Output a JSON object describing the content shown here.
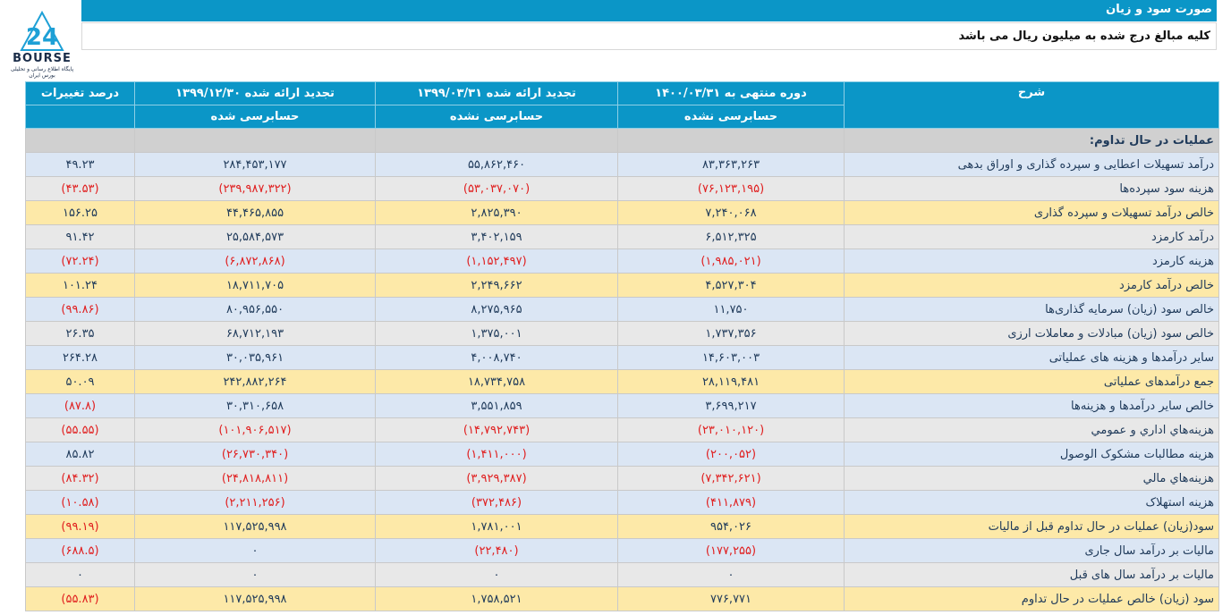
{
  "logo": {
    "text": "BOURSE",
    "subtext": "پایگاه اطلاع رسانی و تحلیلی بورس ایران"
  },
  "header": {
    "title": "صورت سود و زیان",
    "note": "کلیه مبالغ درج شده به میلیون ریال می باشد"
  },
  "columns": {
    "desc": "شرح",
    "col1": "دوره منتهی به ۱۴۰۰/۰۳/۳۱",
    "col1_status": "حسابرسی نشده",
    "col2": "تجدید ارائه شده ۱۳۹۹/۰۳/۳۱",
    "col2_status": "حسابرسی نشده",
    "col3": "تجدید ارائه شده ۱۳۹۹/۱۲/۳۰",
    "col3_status": "حسابرسی شده",
    "change": "درصد تغییرات"
  },
  "section_title": "عملیات در حال تداوم:",
  "rows": [
    {
      "desc": "درآمد تسهیلات اعطایی و سپرده گذاری و اوراق بدهی",
      "v1": "۸۳,۳۶۳,۲۶۳",
      "v2": "۵۵,۸۶۲,۴۶۰",
      "v3": "۲۸۴,۴۵۳,۱۷۷",
      "change": "۴۹.۲۳",
      "style": "blue",
      "neg": [
        false,
        false,
        false,
        false
      ]
    },
    {
      "desc": "هزینه سود سپرده‌ها",
      "v1": "(۷۶,۱۲۳,۱۹۵)",
      "v2": "(۵۳,۰۳۷,۰۷۰)",
      "v3": "(۲۳۹,۹۸۷,۳۲۲)",
      "change": "(۴۳.۵۳)",
      "style": "gray",
      "neg": [
        true,
        true,
        true,
        true
      ]
    },
    {
      "desc": "خالص درآمد تسهیلات و سپرده گذاری",
      "v1": "۷,۲۴۰,۰۶۸",
      "v2": "۲,۸۲۵,۳۹۰",
      "v3": "۴۴,۴۶۵,۸۵۵",
      "change": "۱۵۶.۲۵",
      "style": "yellow",
      "neg": [
        false,
        false,
        false,
        false
      ]
    },
    {
      "desc": "درآمد کارمزد",
      "v1": "۶,۵۱۲,۳۲۵",
      "v2": "۳,۴۰۲,۱۵۹",
      "v3": "۲۵,۵۸۴,۵۷۳",
      "change": "۹۱.۴۲",
      "style": "gray",
      "neg": [
        false,
        false,
        false,
        false
      ]
    },
    {
      "desc": "هزینه کارمزد",
      "v1": "(۱,۹۸۵,۰۲۱)",
      "v2": "(۱,۱۵۲,۴۹۷)",
      "v3": "(۶,۸۷۲,۸۶۸)",
      "change": "(۷۲.۲۴)",
      "style": "blue",
      "neg": [
        true,
        true,
        true,
        true
      ]
    },
    {
      "desc": "خالص درآمد کارمزد",
      "v1": "۴,۵۲۷,۳۰۴",
      "v2": "۲,۲۴۹,۶۶۲",
      "v3": "۱۸,۷۱۱,۷۰۵",
      "change": "۱۰۱.۲۴",
      "style": "yellow",
      "neg": [
        false,
        false,
        false,
        false
      ]
    },
    {
      "desc": "خالص سود (زیان) سرمایه گذاری‌ها",
      "v1": "۱۱,۷۵۰",
      "v2": "۸,۲۷۵,۹۶۵",
      "v3": "۸۰,۹۵۶,۵۵۰",
      "change": "(۹۹.۸۶)",
      "style": "blue",
      "neg": [
        false,
        false,
        false,
        true
      ]
    },
    {
      "desc": "خالص سود (زیان) مبادلات و معاملات ارزی",
      "v1": "۱,۷۳۷,۳۵۶",
      "v2": "۱,۳۷۵,۰۰۱",
      "v3": "۶۸,۷۱۲,۱۹۳",
      "change": "۲۶.۳۵",
      "style": "gray",
      "neg": [
        false,
        false,
        false,
        false
      ]
    },
    {
      "desc": "سایر درآمدها و هزینه های عملیاتی",
      "v1": "۱۴,۶۰۳,۰۰۳",
      "v2": "۴,۰۰۸,۷۴۰",
      "v3": "۳۰,۰۳۵,۹۶۱",
      "change": "۲۶۴.۲۸",
      "style": "blue",
      "neg": [
        false,
        false,
        false,
        false
      ]
    },
    {
      "desc": "جمع درآمدهای عملیاتی",
      "v1": "۲۸,۱۱۹,۴۸۱",
      "v2": "۱۸,۷۳۴,۷۵۸",
      "v3": "۲۴۲,۸۸۲,۲۶۴",
      "change": "۵۰.۰۹",
      "style": "yellow",
      "neg": [
        false,
        false,
        false,
        false
      ]
    },
    {
      "desc": "خالص سایر درآمدها و هزینه‌ها",
      "v1": "۳,۶۹۹,۲۱۷",
      "v2": "۳,۵۵۱,۸۵۹",
      "v3": "۳۰,۳۱۰,۶۵۸",
      "change": "(۸۷.۸)",
      "style": "blue",
      "neg": [
        false,
        false,
        false,
        true
      ]
    },
    {
      "desc": "هزینه‌هاي اداري و عمومي",
      "v1": "(۲۳,۰۱۰,۱۲۰)",
      "v2": "(۱۴,۷۹۲,۷۴۳)",
      "v3": "(۱۰۱,۹۰۶,۵۱۷)",
      "change": "(۵۵.۵۵)",
      "style": "gray",
      "neg": [
        true,
        true,
        true,
        true
      ]
    },
    {
      "desc": "هزینه مطالبات مشکوک الوصول",
      "v1": "(۲۰۰,۰۵۲)",
      "v2": "(۱,۴۱۱,۰۰۰)",
      "v3": "(۲۶,۷۳۰,۳۴۰)",
      "change": "۸۵.۸۲",
      "style": "blue",
      "neg": [
        true,
        true,
        true,
        false
      ]
    },
    {
      "desc": "هزینه‌هاي مالي",
      "v1": "(۷,۳۴۲,۶۲۱)",
      "v2": "(۳,۹۲۹,۳۸۷)",
      "v3": "(۲۴,۸۱۸,۸۱۱)",
      "change": "(۸۴.۳۲)",
      "style": "gray",
      "neg": [
        true,
        true,
        true,
        true
      ]
    },
    {
      "desc": "هزینه استهلاک",
      "v1": "(۴۱۱,۸۷۹)",
      "v2": "(۳۷۲,۴۸۶)",
      "v3": "(۲,۲۱۱,۲۵۶)",
      "change": "(۱۰.۵۸)",
      "style": "blue",
      "neg": [
        true,
        true,
        true,
        true
      ]
    },
    {
      "desc": "سود(زیان) عملیات در حال تداوم قبل از مالیات",
      "v1": "۹۵۴,۰۲۶",
      "v2": "۱,۷۸۱,۰۰۱",
      "v3": "۱۱۷,۵۲۵,۹۹۸",
      "change": "(۹۹.۱۹)",
      "style": "yellow",
      "neg": [
        false,
        false,
        false,
        true
      ]
    },
    {
      "desc": "مالیات بر درآمد سال جاری",
      "v1": "(۱۷۷,۲۵۵)",
      "v2": "(۲۲,۴۸۰)",
      "v3": "۰",
      "change": "(۶۸۸.۵)",
      "style": "blue",
      "neg": [
        true,
        true,
        false,
        true
      ]
    },
    {
      "desc": "مالیات بر درآمد سال های قبل",
      "v1": "۰",
      "v2": "۰",
      "v3": "۰",
      "change": "۰",
      "style": "gray",
      "neg": [
        false,
        false,
        false,
        false
      ]
    },
    {
      "desc": "سود (زیان) خالص عملیات در حال تداوم",
      "v1": "۷۷۶,۷۷۱",
      "v2": "۱,۷۵۸,۵۲۱",
      "v3": "۱۱۷,۵۲۵,۹۹۸",
      "change": "(۵۵.۸۳)",
      "style": "yellow",
      "neg": [
        false,
        false,
        false,
        true
      ]
    }
  ]
}
